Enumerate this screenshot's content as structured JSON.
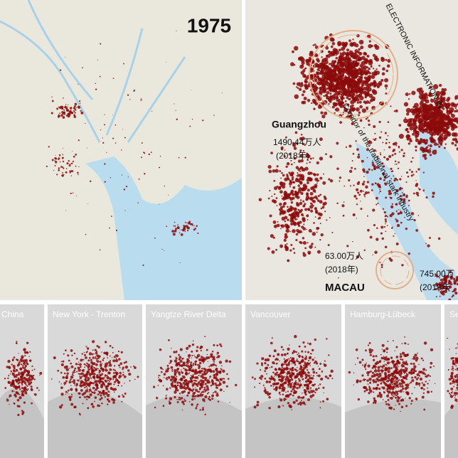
{
  "main_panels": {
    "left": {
      "year_label": "1975"
    },
    "right": {
      "corridor_labels": [
        "ELECTRONIC INFORMATION IN",
        "Corridor of the traditional stark industry"
      ],
      "cities": [
        {
          "name": "Guangzhou",
          "population": "1490.44万人",
          "year": "(2018年)"
        },
        {
          "name": "MACAU",
          "population": "63.00万人",
          "year": "(2018年)"
        },
        {
          "population": "745.00万",
          "year": "(2018年"
        }
      ]
    }
  },
  "thumbnails": [
    {
      "label": "China"
    },
    {
      "label": "New York - Trenton"
    },
    {
      "label": "Yangtze River Delta"
    },
    {
      "label": "Vancouver"
    },
    {
      "label": "Hamburg-Lübeck"
    },
    {
      "label": "Se"
    }
  ]
}
